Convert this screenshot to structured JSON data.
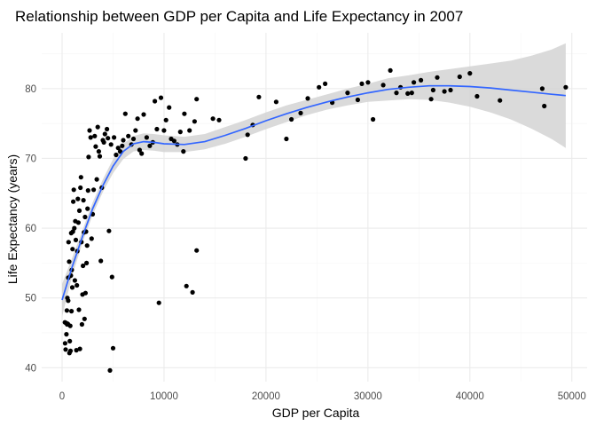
{
  "chart_data": {
    "type": "scatter",
    "title": "Relationship between GDP per Capita and Life Expectancy in 2007",
    "xlabel": "GDP per Capita",
    "ylabel": "Life Expectancy (years)",
    "xlim": [
      -2000,
      51500
    ],
    "ylim": [
      38,
      88
    ],
    "x_ticks": [
      0,
      10000,
      20000,
      30000,
      40000,
      50000
    ],
    "x_tick_labels": [
      "0",
      "10000",
      "20000",
      "30000",
      "40000",
      "50000"
    ],
    "y_ticks": [
      40,
      50,
      60,
      70,
      80
    ],
    "y_tick_labels": [
      "40",
      "50",
      "60",
      "70",
      "80"
    ],
    "grid": true,
    "legend": "none",
    "colors": {
      "points": "#000000",
      "smooth_line": "#3366FF",
      "confidence_band": "#D3D3D3",
      "grid_major": "#EBEBEB",
      "grid_minor": "#F5F5F5"
    },
    "points": [
      [
        279,
        46.5
      ],
      [
        300,
        43.5
      ],
      [
        350,
        42.6
      ],
      [
        400,
        46.4
      ],
      [
        430,
        44.8
      ],
      [
        470,
        48.2
      ],
      [
        500,
        46.2
      ],
      [
        520,
        50
      ],
      [
        560,
        46.3
      ],
      [
        600,
        49.6
      ],
      [
        610,
        52.9
      ],
      [
        640,
        58.0
      ],
      [
        700,
        55.2
      ],
      [
        720,
        42.1
      ],
      [
        760,
        43.8
      ],
      [
        800,
        46.0
      ],
      [
        830,
        42.4
      ],
      [
        860,
        53.2
      ],
      [
        900,
        59.3
      ],
      [
        920,
        48.1
      ],
      [
        950,
        54.0
      ],
      [
        1000,
        51.5
      ],
      [
        1030,
        57.0
      ],
      [
        1060,
        59.5
      ],
      [
        1100,
        63.8
      ],
      [
        1150,
        65.5
      ],
      [
        1200,
        60.0
      ],
      [
        1250,
        52.5
      ],
      [
        1300,
        61.0
      ],
      [
        1350,
        58.3
      ],
      [
        1400,
        42.5
      ],
      [
        1450,
        51.8
      ],
      [
        1500,
        56.7
      ],
      [
        1550,
        64.2
      ],
      [
        1600,
        60.8
      ],
      [
        1650,
        48.3
      ],
      [
        1700,
        62.5
      ],
      [
        1750,
        42.7
      ],
      [
        1800,
        65.8
      ],
      [
        1850,
        67.3
      ],
      [
        1900,
        58.0
      ],
      [
        1950,
        46.2
      ],
      [
        2000,
        50.5
      ],
      [
        2050,
        54.6
      ],
      [
        2100,
        64.0
      ],
      [
        2150,
        59.4
      ],
      [
        2200,
        47.0
      ],
      [
        2250,
        61.6
      ],
      [
        2300,
        50.7
      ],
      [
        2350,
        59.5
      ],
      [
        2400,
        55.0
      ],
      [
        2450,
        57.5
      ],
      [
        2500,
        62.8
      ],
      [
        2550,
        65.4
      ],
      [
        2600,
        70.2
      ],
      [
        2700,
        74.0
      ],
      [
        2800,
        73.0
      ],
      [
        2900,
        58.5
      ],
      [
        3000,
        62.0
      ],
      [
        3100,
        65.5
      ],
      [
        3200,
        73.2
      ],
      [
        3300,
        71.7
      ],
      [
        3400,
        67.0
      ],
      [
        3500,
        74.5
      ],
      [
        3600,
        71.0
      ],
      [
        3700,
        70.3
      ],
      [
        3800,
        55.3
      ],
      [
        3900,
        65.8
      ],
      [
        4000,
        72.6
      ],
      [
        4100,
        72.3
      ],
      [
        4200,
        73.5
      ],
      [
        4400,
        74.2
      ],
      [
        4500,
        72.9
      ],
      [
        4600,
        59.6
      ],
      [
        4700,
        39.6
      ],
      [
        4800,
        72.0
      ],
      [
        4900,
        53.0
      ],
      [
        5000,
        42.8
      ],
      [
        5100,
        73.0
      ],
      [
        5300,
        70.5
      ],
      [
        5500,
        71.5
      ],
      [
        5700,
        71.0
      ],
      [
        5900,
        71.8
      ],
      [
        6000,
        72.6
      ],
      [
        6200,
        76.4
      ],
      [
        6500,
        73.2
      ],
      [
        6800,
        72.0
      ],
      [
        7000,
        72.8
      ],
      [
        7200,
        74.0
      ],
      [
        7400,
        75.7
      ],
      [
        7600,
        71.2
      ],
      [
        7800,
        70.7
      ],
      [
        8000,
        76.3
      ],
      [
        8300,
        73.0
      ],
      [
        8600,
        71.8
      ],
      [
        8900,
        72.3
      ],
      [
        9100,
        78.2
      ],
      [
        9300,
        74.2
      ],
      [
        9500,
        49.3
      ],
      [
        9700,
        78.7
      ],
      [
        10000,
        74.0
      ],
      [
        10200,
        75.5
      ],
      [
        10500,
        77.3
      ],
      [
        10700,
        72.8
      ],
      [
        11000,
        72.5
      ],
      [
        11300,
        72.0
      ],
      [
        11600,
        73.8
      ],
      [
        11900,
        71.0
      ],
      [
        12000,
        76.4
      ],
      [
        12200,
        51.7
      ],
      [
        12500,
        74.0
      ],
      [
        12800,
        50.8
      ],
      [
        13000,
        75.3
      ],
      [
        13200,
        78.5
      ],
      [
        13200,
        56.8
      ],
      [
        14800,
        75.7
      ],
      [
        15400,
        75.5
      ],
      [
        18000,
        70.0
      ],
      [
        18200,
        73.4
      ],
      [
        18700,
        74.8
      ],
      [
        19300,
        78.8
      ],
      [
        21000,
        78.1
      ],
      [
        22000,
        72.8
      ],
      [
        22500,
        75.6
      ],
      [
        23400,
        76.5
      ],
      [
        24100,
        78.6
      ],
      [
        25200,
        80.2
      ],
      [
        25800,
        80.7
      ],
      [
        26500,
        78.0
      ],
      [
        28000,
        79.4
      ],
      [
        29000,
        78.4
      ],
      [
        29400,
        80.7
      ],
      [
        30000,
        80.9
      ],
      [
        30500,
        75.6
      ],
      [
        31500,
        80.5
      ],
      [
        32200,
        82.6
      ],
      [
        32800,
        79.4
      ],
      [
        33200,
        80.2
      ],
      [
        33900,
        79.3
      ],
      [
        34300,
        79.4
      ],
      [
        34500,
        80.9
      ],
      [
        35200,
        81.2
      ],
      [
        36200,
        78.5
      ],
      [
        36400,
        79.8
      ],
      [
        36800,
        81.6
      ],
      [
        37500,
        79.6
      ],
      [
        38100,
        79.8
      ],
      [
        39000,
        81.7
      ],
      [
        40000,
        82.2
      ],
      [
        40700,
        78.9
      ],
      [
        42950,
        78.3
      ],
      [
        47100,
        80.0
      ],
      [
        47300,
        77.5
      ],
      [
        49400,
        80.2
      ]
    ],
    "smooth": {
      "x": [
        0,
        1000,
        2000,
        3000,
        4000,
        5000,
        6000,
        7000,
        8000,
        9000,
        10000,
        12000,
        14000,
        16000,
        18000,
        20000,
        22000,
        24000,
        26000,
        28000,
        30000,
        32000,
        34000,
        36000,
        38000,
        40000,
        42000,
        44000,
        46000,
        48000,
        49400
      ],
      "y": [
        49.7,
        54.5,
        58.8,
        62.8,
        66.1,
        68.9,
        71.0,
        72.1,
        72.4,
        72.3,
        72.1,
        72.0,
        72.4,
        73.3,
        74.3,
        75.4,
        76.4,
        77.3,
        78.1,
        78.8,
        79.4,
        79.9,
        80.2,
        80.4,
        80.4,
        80.3,
        80.1,
        79.8,
        79.5,
        79.2,
        79.0
      ],
      "lower": [
        47.3,
        53.2,
        57.9,
        61.9,
        65.2,
        67.9,
        69.9,
        71.0,
        71.2,
        71.1,
        70.9,
        70.9,
        71.3,
        72.1,
        73.1,
        74.2,
        75.2,
        76.2,
        77.0,
        77.6,
        78.1,
        78.3,
        78.5,
        78.4,
        78.0,
        77.4,
        76.6,
        75.6,
        74.3,
        72.8,
        71.5
      ],
      "upper": [
        52.0,
        55.8,
        59.7,
        63.7,
        67.0,
        69.9,
        72.1,
        73.2,
        73.6,
        73.5,
        73.3,
        73.1,
        73.5,
        74.5,
        75.5,
        76.6,
        77.6,
        78.4,
        79.2,
        80.0,
        80.7,
        81.5,
        81.9,
        82.4,
        82.8,
        83.2,
        83.6,
        84.0,
        84.7,
        85.6,
        86.5
      ]
    }
  }
}
